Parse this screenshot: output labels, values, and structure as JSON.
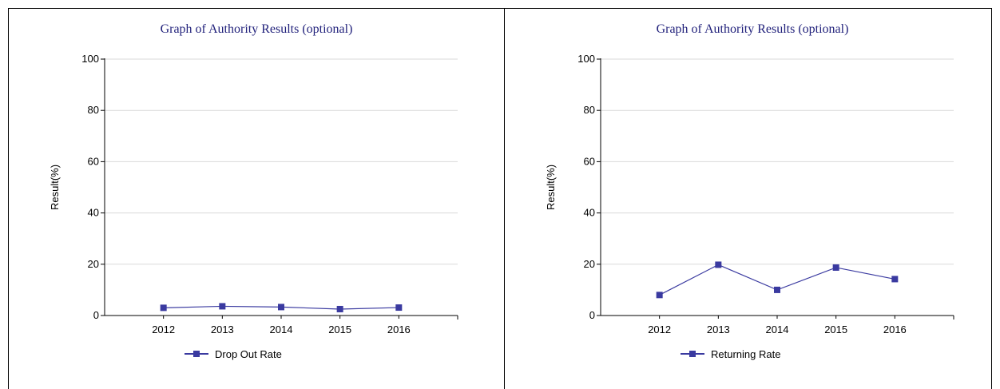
{
  "colors": {
    "series": "#3a3aa0",
    "grid": "#d9d9d9",
    "axis": "#000000",
    "title": "#1f1f7a"
  },
  "chart_data": [
    {
      "type": "line",
      "title": "Graph of Authority Results (optional)",
      "xlabel": "",
      "ylabel": "Result(%)",
      "ylim": [
        0,
        100
      ],
      "yticks": [
        "0",
        "20",
        "40",
        "60",
        "80",
        "100"
      ],
      "categories": [
        "2012",
        "2013",
        "2014",
        "2015",
        "2016"
      ],
      "series": [
        {
          "name": "Drop Out Rate",
          "values": [
            3.0,
            3.6,
            3.3,
            2.5,
            3.1
          ]
        }
      ],
      "grid": true,
      "legend": "bottom"
    },
    {
      "type": "line",
      "title": "Graph of Authority Results (optional)",
      "xlabel": "",
      "ylabel": "Result(%)",
      "ylim": [
        0,
        100
      ],
      "yticks": [
        "0",
        "20",
        "40",
        "60",
        "80",
        "100"
      ],
      "categories": [
        "2012",
        "2013",
        "2014",
        "2015",
        "2016"
      ],
      "series": [
        {
          "name": "Returning Rate",
          "values": [
            8.0,
            19.8,
            10.0,
            18.7,
            14.2
          ]
        }
      ],
      "grid": true,
      "legend": "bottom"
    }
  ]
}
